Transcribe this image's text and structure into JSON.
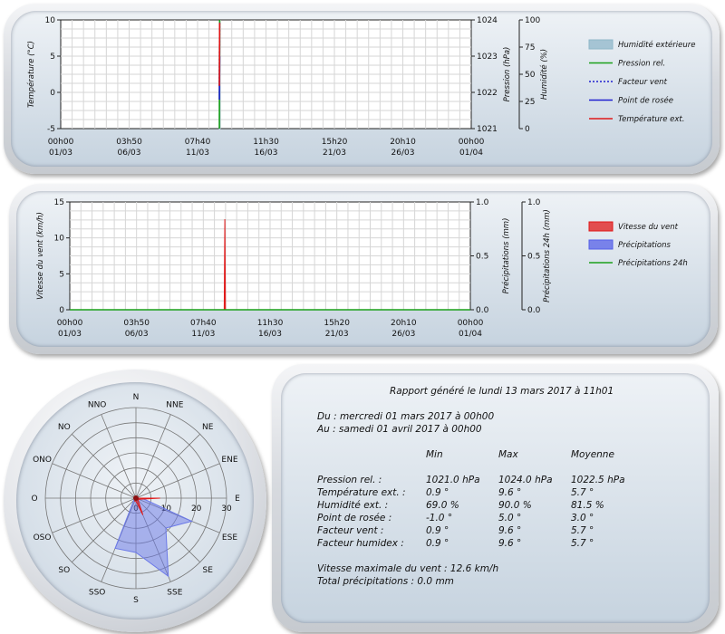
{
  "chart_data": [
    {
      "type": "line",
      "x_ticks": [
        [
          "00h00",
          "01/03"
        ],
        [
          "03h50",
          "06/03"
        ],
        [
          "07h40",
          "11/03"
        ],
        [
          "11h30",
          "16/03"
        ],
        [
          "15h20",
          "21/03"
        ],
        [
          "20h10",
          "26/03"
        ],
        [
          "00h00",
          "01/04"
        ]
      ],
      "axes": {
        "left": {
          "label": "Température (°C)",
          "ticks": [
            "10",
            "5",
            "0",
            "-5"
          ],
          "lim": [
            -5,
            10
          ]
        },
        "right1": {
          "label": "Pression (hPa)",
          "ticks": [
            "1024",
            "1023",
            "1022",
            "1021"
          ],
          "lim": [
            1021,
            1024
          ]
        },
        "right2": {
          "label": "Humidité (%)",
          "ticks": [
            "100",
            "75",
            "50",
            "25",
            "0"
          ],
          "lim": [
            0,
            100
          ]
        }
      },
      "x_range_days": [
        0,
        31
      ],
      "grid": true,
      "legend_placement": "right",
      "series": [
        {
          "name": "Humidité extérieure",
          "kind": "area",
          "color": "#8fb7c9",
          "axis": "right2",
          "points": [
            [
              11.97,
              69
            ],
            [
              12.0,
              90
            ],
            [
              12.03,
              81
            ]
          ]
        },
        {
          "name": "Pression rel.",
          "kind": "line",
          "color": "#1aa01a",
          "axis": "right1",
          "points": [
            [
              11.98,
              1021.0
            ],
            [
              12.0,
              1024.0
            ]
          ]
        },
        {
          "name": "Facteur vent",
          "kind": "dotted",
          "color": "#1f1fd0",
          "axis": "left",
          "points": [
            [
              11.98,
              0.9
            ],
            [
              12.0,
              9.6
            ]
          ]
        },
        {
          "name": "Point de rosée",
          "kind": "line",
          "color": "#1f1fd0",
          "axis": "left",
          "points": [
            [
              11.98,
              -1.0
            ],
            [
              12.0,
              5.0
            ]
          ]
        },
        {
          "name": "Température ext.",
          "kind": "line",
          "color": "#e01818",
          "axis": "left",
          "points": [
            [
              11.98,
              0.9
            ],
            [
              12.0,
              9.6
            ]
          ]
        }
      ]
    },
    {
      "type": "area",
      "x_ticks": [
        [
          "00h00",
          "01/03"
        ],
        [
          "03h50",
          "06/03"
        ],
        [
          "07h40",
          "11/03"
        ],
        [
          "11h30",
          "16/03"
        ],
        [
          "15h20",
          "21/03"
        ],
        [
          "20h10",
          "26/03"
        ],
        [
          "00h00",
          "01/04"
        ]
      ],
      "axes": {
        "left": {
          "label": "Vitesse du vent (km/h)",
          "ticks": [
            "15",
            "10",
            "5",
            "0"
          ],
          "lim": [
            0,
            15
          ]
        },
        "right1": {
          "label": "Précipitations (mm)",
          "ticks": [
            "1.0",
            "0.5",
            "0.0"
          ],
          "lim": [
            0,
            1
          ]
        },
        "right2": {
          "label": "Précipitations 24h (mm)",
          "ticks": [
            "1.0",
            "0.5",
            "0.0"
          ],
          "lim": [
            0,
            1
          ]
        }
      },
      "x_range_days": [
        0,
        31
      ],
      "grid": true,
      "legend_placement": "right",
      "series": [
        {
          "name": "Vitesse du vent",
          "kind": "area",
          "color": "#e01818",
          "axis": "left",
          "points": [
            [
              11.95,
              0
            ],
            [
              12.0,
              12.6
            ],
            [
              12.05,
              0
            ]
          ]
        },
        {
          "name": "Précipitations",
          "kind": "area",
          "color": "#5560e8",
          "axis": "right1",
          "points": [
            [
              0,
              0
            ],
            [
              31,
              0
            ]
          ]
        },
        {
          "name": "Précipitations 24h",
          "kind": "line",
          "color": "#1aa01a",
          "axis": "right2",
          "points": [
            [
              0,
              0
            ],
            [
              31,
              0
            ]
          ]
        }
      ]
    },
    {
      "type": "radar",
      "directions": [
        "N",
        "NNE",
        "NE",
        "ENE",
        "E",
        "ESE",
        "SE",
        "SSE",
        "S",
        "SSO",
        "SO",
        "OSO",
        "O",
        "ONO",
        "NO",
        "NNO"
      ],
      "radial_ticks": [
        "0",
        "10",
        "20",
        "30"
      ],
      "rmax": 30,
      "series": [
        {
          "name": "blue",
          "color": "#6a78e8",
          "values": [
            0,
            0,
            0,
            0,
            2,
            20,
            14,
            28,
            18,
            18,
            1,
            0,
            0,
            0,
            0,
            0
          ]
        },
        {
          "name": "red",
          "color": "#e01818",
          "values": [
            0,
            0,
            0,
            0,
            8,
            1,
            1,
            6,
            1,
            1,
            0,
            0,
            0,
            0,
            0,
            0
          ]
        }
      ]
    }
  ],
  "report": {
    "title": "Rapport généré le lundi 13 mars 2017 à 11h01",
    "from": "Du : mercredi 01 mars 2017 à 00h00",
    "to": "Au : samedi 01 avril 2017 à 00h00",
    "headers": [
      "Min",
      "Max",
      "Moyenne"
    ],
    "rows": [
      {
        "label": "Pression rel. :",
        "min": "1021.0 hPa",
        "max": "1024.0 hPa",
        "avg": "1022.5 hPa"
      },
      {
        "label": "Température ext. :",
        "min": "0.9 °",
        "max": "9.6 °",
        "avg": "5.7 °"
      },
      {
        "label": "Humidité ext. :",
        "min": "69.0 %",
        "max": "90.0 %",
        "avg": "81.5 %"
      },
      {
        "label": "Point de rosée :",
        "min": "-1.0 °",
        "max": "5.0 °",
        "avg": "3.0 °"
      },
      {
        "label": "Facteur vent :",
        "min": "0.9 °",
        "max": "9.6 °",
        "avg": "5.7 °"
      },
      {
        "label": "Facteur humidex :",
        "min": "0.9 °",
        "max": "9.6 °",
        "avg": "5.7 °"
      }
    ],
    "max_wind": "Vitesse maximale du vent : 12.6 km/h",
    "total_precip": "Total précipitations : 0.0 mm"
  }
}
